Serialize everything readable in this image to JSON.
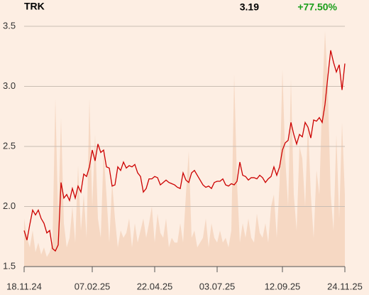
{
  "chart_data": {
    "type": "line",
    "title": "TRK",
    "price": 3.19,
    "change": "+77.50%",
    "categories": [
      "18.11.24",
      null,
      null,
      null,
      null,
      null,
      null,
      null,
      null,
      null,
      null,
      null,
      null,
      null,
      null,
      null,
      null,
      null,
      null,
      null,
      null,
      null,
      null,
      null,
      "07.02.25",
      null,
      null,
      null,
      null,
      null,
      null,
      null,
      null,
      null,
      null,
      null,
      null,
      null,
      null,
      null,
      null,
      null,
      null,
      null,
      null,
      null,
      "22.04.25",
      null,
      null,
      null,
      null,
      null,
      null,
      null,
      null,
      null,
      null,
      null,
      null,
      null,
      null,
      null,
      null,
      null,
      null,
      null,
      null,
      null,
      "03.07.25",
      null,
      null,
      null,
      null,
      null,
      null,
      null,
      null,
      null,
      null,
      null,
      null,
      null,
      null,
      null,
      null,
      null,
      null,
      null,
      null,
      null,
      null,
      "12.09.25",
      null,
      null,
      null,
      null,
      null,
      null,
      null,
      null,
      null,
      null,
      null,
      null,
      null,
      null,
      null,
      null,
      null,
      null,
      null,
      null,
      null,
      "24.11.25"
    ],
    "values": [
      1.8,
      1.72,
      1.85,
      1.97,
      1.93,
      1.97,
      1.9,
      1.86,
      1.78,
      1.8,
      1.65,
      1.63,
      1.68,
      2.2,
      2.07,
      2.1,
      2.05,
      2.15,
      2.07,
      2.17,
      2.12,
      2.27,
      2.25,
      2.33,
      2.47,
      2.38,
      2.52,
      2.45,
      2.47,
      2.33,
      2.32,
      2.17,
      2.18,
      2.33,
      2.3,
      2.37,
      2.32,
      2.34,
      2.33,
      2.35,
      2.28,
      2.25,
      2.12,
      2.15,
      2.23,
      2.23,
      2.25,
      2.24,
      2.18,
      2.2,
      2.22,
      2.2,
      2.19,
      2.18,
      2.16,
      2.15,
      2.28,
      2.22,
      2.2,
      2.28,
      2.3,
      2.26,
      2.22,
      2.18,
      2.16,
      2.17,
      2.15,
      2.2,
      2.21,
      2.21,
      2.23,
      2.18,
      2.17,
      2.19,
      2.18,
      2.21,
      2.37,
      2.26,
      2.25,
      2.22,
      2.24,
      2.24,
      2.23,
      2.26,
      2.24,
      2.2,
      2.23,
      2.25,
      2.33,
      2.26,
      2.33,
      2.47,
      2.53,
      2.55,
      2.7,
      2.6,
      2.52,
      2.6,
      2.58,
      2.7,
      2.66,
      2.57,
      2.72,
      2.71,
      2.74,
      2.7,
      2.85,
      3.08,
      3.3,
      3.2,
      3.12,
      3.18,
      2.97,
      3.19
    ],
    "color": "#cc0000",
    "volume": [
      20,
      12,
      8,
      15,
      6,
      10,
      5,
      8,
      4,
      6,
      10,
      70,
      20,
      62,
      18,
      8,
      12,
      25,
      10,
      42,
      15,
      30,
      12,
      70,
      25,
      55,
      20,
      12,
      48,
      30,
      10,
      35,
      20,
      8,
      15,
      12,
      14,
      20,
      8,
      18,
      10,
      15,
      20,
      12,
      18,
      25,
      10,
      22,
      14,
      12,
      20,
      8,
      12,
      10,
      10,
      18,
      10,
      30,
      48,
      12,
      15,
      8,
      10,
      12,
      20,
      8,
      18,
      12,
      10,
      15,
      10,
      12,
      8,
      15,
      80,
      35,
      10,
      18,
      12,
      20,
      12,
      10,
      22,
      14,
      12,
      18,
      10,
      25,
      30,
      12,
      35,
      82,
      45,
      25,
      78,
      30,
      15,
      50,
      45,
      25,
      60,
      30,
      12,
      40,
      30,
      70,
      98,
      75,
      30,
      15,
      55,
      20,
      60,
      30
    ],
    "volume_color": "#f6d8c3",
    "y2lim": [
      0,
      100
    ],
    "ylim": [
      1.5,
      3.5
    ],
    "yticks": [
      1.5,
      {
        "value": 2,
        "label": "2.0"
      },
      2.5,
      {
        "value": 3,
        "label": "3.0"
      },
      3.5
    ],
    "grid": true
  }
}
